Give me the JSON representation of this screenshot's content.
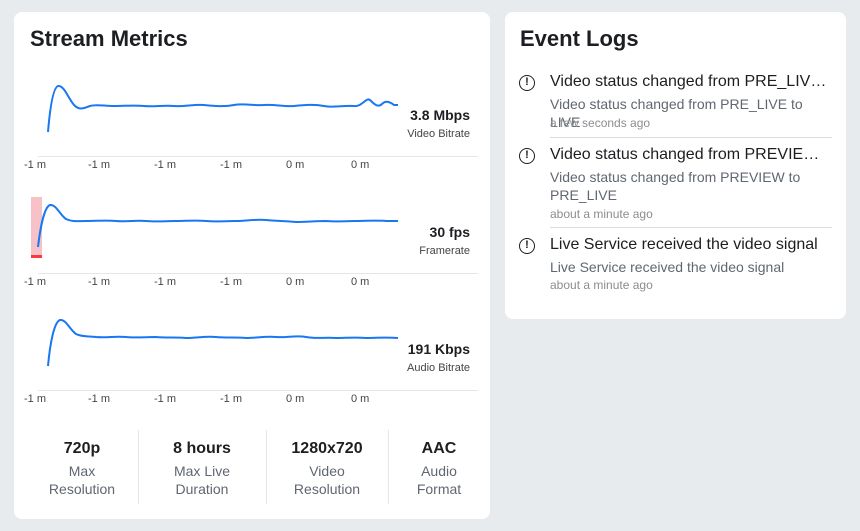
{
  "metrics": {
    "title": "Stream Metrics",
    "charts": [
      {
        "value": "3.8 Mbps",
        "label": "Video Bitrate",
        "ticks": [
          "-1 m",
          "-1 m",
          "-1 m",
          "-1 m",
          "0 m",
          "0 m"
        ]
      },
      {
        "value": "30 fps",
        "label": "Framerate",
        "ticks": [
          "-1 m",
          "-1 m",
          "-1 m",
          "-1 m",
          "0 m",
          "0 m"
        ]
      },
      {
        "value": "191 Kbps",
        "label": "Audio Bitrate",
        "ticks": [
          "-1 m",
          "-1 m",
          "-1 m",
          "-1 m",
          "0 m",
          "0 m"
        ]
      }
    ],
    "stats": [
      {
        "value": "720p",
        "label_1": "Max",
        "label_2": "Resolution"
      },
      {
        "value": "8 hours",
        "label_1": "Max Live",
        "label_2": "Duration"
      },
      {
        "value": "1280x720",
        "label_1": "Video",
        "label_2": "Resolution"
      },
      {
        "value": "AAC",
        "label_1": "Audio",
        "label_2": "Format"
      }
    ],
    "line_color": "#1877f2",
    "warning_color": "#fa383e"
  },
  "events": {
    "title": "Event Logs",
    "icon": "exclamation-circle-icon",
    "items": [
      {
        "title": "Video status changed from PRE_LIVE ...",
        "desc_1": "Video status changed from PRE_LIVE to LIVE",
        "desc_2": "",
        "time": "a few seconds ago"
      },
      {
        "title": "Video status changed from PREVIEW ...",
        "desc_1": "Video status changed from PREVIEW to",
        "desc_2": "PRE_LIVE",
        "time": "about a minute ago"
      },
      {
        "title": "Live Service received the video signal",
        "desc_1": "Live Service received the video signal",
        "desc_2": "",
        "time": "about a minute ago"
      }
    ]
  }
}
